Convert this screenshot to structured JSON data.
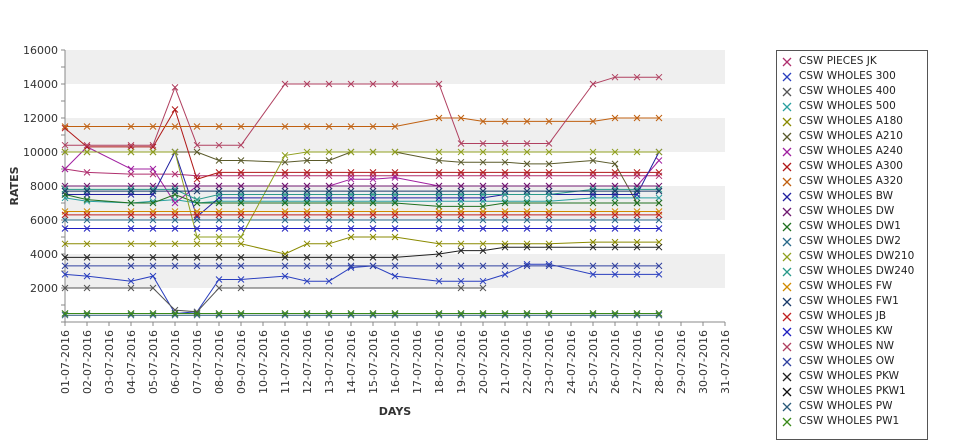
{
  "chart_data": {
    "type": "line",
    "title": "",
    "xlabel": "DAYS",
    "ylabel": "RATES",
    "ylim": [
      0,
      16000
    ],
    "yticks": [
      "2000",
      "4000",
      "6000",
      "8000",
      "10000",
      "12000",
      "14000",
      "16000"
    ],
    "grid": "alternating horizontal bands",
    "legend_position": "right",
    "categories": [
      "01-07-2016",
      "02-07-2016",
      "03-07-2016",
      "04-07-2016",
      "05-07-2016",
      "06-07-2016",
      "07-07-2016",
      "08-07-2016",
      "09-07-2016",
      "10-07-2016",
      "11-07-2016",
      "12-07-2016",
      "13-07-2016",
      "14-07-2016",
      "15-07-2016",
      "16-07-2016",
      "17-07-2016",
      "18-07-2016",
      "19-07-2016",
      "20-07-2016",
      "21-07-2016",
      "22-07-2016",
      "23-07-2016",
      "24-07-2016",
      "25-07-2016",
      "26-07-2016",
      "27-07-2016",
      "28-07-2016",
      "29-07-2016",
      "30-07-2016",
      "31-07-2016"
    ],
    "series": [
      {
        "name": "CSW PIECES JK",
        "color": "#b0306f",
        "marker": "x",
        "values": [
          9000,
          8800,
          null,
          8700,
          8700,
          8700,
          8600,
          8600,
          8600,
          null,
          8600,
          8600,
          8600,
          8600,
          8600,
          8600,
          null,
          8600,
          8600,
          8600,
          8600,
          8600,
          8600,
          null,
          8600,
          8600,
          8600,
          8600,
          null,
          null,
          null
        ]
      },
      {
        "name": "CSW WHOLES 300",
        "color": "#2a3fbf",
        "marker": "x",
        "values": [
          2800,
          2700,
          null,
          2400,
          2700,
          500,
          600,
          2500,
          2500,
          null,
          2700,
          2400,
          2400,
          3200,
          3300,
          2700,
          null,
          2400,
          2400,
          2400,
          2800,
          3400,
          3400,
          null,
          2800,
          2800,
          2800,
          2800,
          null,
          null,
          null
        ]
      },
      {
        "name": "CSW WHOLES 400",
        "color": "#555555",
        "marker": "x",
        "values": [
          2000,
          2000,
          null,
          2000,
          2000,
          700,
          600,
          2000,
          2000,
          null,
          null,
          null,
          null,
          null,
          null,
          null,
          null,
          null,
          2000,
          2000,
          null,
          null,
          null,
          null,
          null,
          null,
          null,
          null,
          null,
          null,
          null
        ]
      },
      {
        "name": "CSW WHOLES 500",
        "color": "#2aa0a0",
        "marker": "x",
        "values": [
          7300,
          7100,
          null,
          7000,
          7100,
          7200,
          7000,
          7100,
          7100,
          null,
          7100,
          7100,
          7100,
          7100,
          7100,
          7100,
          null,
          7100,
          7100,
          7100,
          7100,
          7100,
          7100,
          null,
          7300,
          7300,
          7300,
          7300,
          null,
          null,
          null
        ]
      },
      {
        "name": "CSW WHOLES A180",
        "color": "#8a8a00",
        "marker": "x",
        "values": [
          4600,
          4600,
          null,
          4600,
          4600,
          4600,
          4600,
          4600,
          4600,
          null,
          4000,
          4600,
          4600,
          5000,
          5000,
          5000,
          null,
          4600,
          4600,
          4600,
          4600,
          4600,
          4600,
          null,
          4700,
          4700,
          4700,
          4700,
          null,
          null,
          null
        ]
      },
      {
        "name": "CSW WHOLES A210",
        "color": "#5a5a2a",
        "marker": "x",
        "values": [
          10000,
          10000,
          null,
          10000,
          10000,
          10000,
          10000,
          9500,
          9500,
          null,
          9400,
          9500,
          9500,
          10000,
          10000,
          10000,
          null,
          9500,
          9400,
          9400,
          9400,
          9300,
          9300,
          null,
          9500,
          9300,
          7000,
          7000,
          null,
          null,
          null
        ]
      },
      {
        "name": "CSW WHOLES A240",
        "color": "#a020a0",
        "marker": "x",
        "values": [
          9000,
          10300,
          null,
          9000,
          9000,
          7000,
          8000,
          8000,
          8000,
          null,
          8000,
          8000,
          8000,
          8400,
          8400,
          8500,
          null,
          8000,
          8000,
          8000,
          8000,
          8000,
          8000,
          null,
          8000,
          8000,
          8000,
          9500,
          null,
          null,
          null
        ]
      },
      {
        "name": "CSW WHOLES A300",
        "color": "#b01818",
        "marker": "x",
        "values": [
          11400,
          10300,
          null,
          10300,
          10300,
          12500,
          8400,
          8800,
          8800,
          null,
          8800,
          8800,
          8800,
          8800,
          8800,
          8800,
          null,
          8800,
          8800,
          8800,
          8800,
          8800,
          8800,
          null,
          8800,
          8800,
          8800,
          8800,
          null,
          null,
          null
        ]
      },
      {
        "name": "CSW WHOLES A320",
        "color": "#c06010",
        "marker": "x",
        "values": [
          11500,
          11500,
          null,
          11500,
          11500,
          11500,
          11500,
          11500,
          11500,
          null,
          11500,
          11500,
          11500,
          11500,
          11500,
          11500,
          null,
          12000,
          12000,
          11800,
          11800,
          11800,
          11800,
          null,
          11800,
          12000,
          12000,
          12000,
          null,
          null,
          null
        ]
      },
      {
        "name": "CSW WHOLES BW",
        "color": "#2020a0",
        "marker": "x",
        "values": [
          7500,
          7500,
          null,
          7500,
          7500,
          10000,
          6200,
          7300,
          7300,
          null,
          7300,
          7300,
          7300,
          7300,
          7300,
          7300,
          null,
          7300,
          7300,
          7300,
          7500,
          7500,
          7500,
          null,
          7500,
          7500,
          7500,
          10000,
          null,
          null,
          null
        ]
      },
      {
        "name": "CSW WHOLES DW",
        "color": "#701a70",
        "marker": "x",
        "values": [
          8000,
          8000,
          null,
          8000,
          8000,
          8000,
          8000,
          8000,
          8000,
          null,
          8000,
          8000,
          8000,
          8000,
          8000,
          8000,
          null,
          8000,
          8000,
          8000,
          8000,
          8000,
          8000,
          null,
          8000,
          8000,
          8000,
          8000,
          null,
          null,
          null
        ]
      },
      {
        "name": "CSW WHOLES DW1",
        "color": "#207020",
        "marker": "x",
        "values": [
          7500,
          7200,
          null,
          7000,
          7000,
          7500,
          7000,
          7000,
          7000,
          null,
          7000,
          7000,
          7000,
          7000,
          7000,
          7000,
          null,
          6800,
          6800,
          6800,
          7000,
          7000,
          7000,
          null,
          7000,
          7000,
          7000,
          7000,
          null,
          null,
          null
        ]
      },
      {
        "name": "CSW WHOLES DW2",
        "color": "#2a6a8a",
        "marker": "x",
        "values": [
          6000,
          6000,
          null,
          6000,
          6000,
          6000,
          6000,
          6000,
          6000,
          null,
          6000,
          6000,
          6000,
          6000,
          6000,
          6000,
          null,
          6000,
          6000,
          6000,
          6000,
          6000,
          6000,
          null,
          6000,
          6000,
          6000,
          6000,
          null,
          null,
          null
        ]
      },
      {
        "name": "CSW WHOLES DW210",
        "color": "#90a020",
        "marker": "x",
        "values": [
          10000,
          10000,
          null,
          10000,
          10000,
          10000,
          5000,
          5000,
          5000,
          null,
          9800,
          10000,
          10000,
          10000,
          10000,
          10000,
          null,
          10000,
          10000,
          10000,
          10000,
          10000,
          10000,
          null,
          10000,
          10000,
          10000,
          10000,
          null,
          null,
          null
        ]
      },
      {
        "name": "CSW WHOLES DW240",
        "color": "#2a9a8a",
        "marker": "x",
        "values": [
          7800,
          7800,
          null,
          7800,
          7800,
          7800,
          7200,
          7500,
          7500,
          null,
          7500,
          7500,
          7500,
          7500,
          7500,
          7500,
          null,
          7500,
          7500,
          7500,
          7500,
          7500,
          7500,
          null,
          7800,
          7800,
          7800,
          7800,
          null,
          null,
          null
        ]
      },
      {
        "name": "CSW WHOLES FW",
        "color": "#d08a00",
        "marker": "x",
        "values": [
          6500,
          6500,
          null,
          6500,
          6500,
          6500,
          6500,
          6500,
          6500,
          null,
          6500,
          6500,
          6500,
          6500,
          6500,
          6500,
          null,
          6500,
          6500,
          6500,
          6500,
          6500,
          6500,
          null,
          6500,
          6500,
          6500,
          6500,
          null,
          null,
          null
        ]
      },
      {
        "name": "CSW WHOLES FW1",
        "color": "#1a3a6a",
        "marker": "x",
        "values": [
          7700,
          7700,
          null,
          7700,
          7700,
          7700,
          7700,
          7700,
          7700,
          null,
          7700,
          7700,
          7700,
          7700,
          7700,
          7700,
          null,
          7700,
          7700,
          7700,
          7700,
          7700,
          7700,
          null,
          7700,
          7700,
          7700,
          7700,
          null,
          null,
          null
        ]
      },
      {
        "name": "CSW WHOLES JB",
        "color": "#c02020",
        "marker": "x",
        "values": [
          6300,
          6300,
          null,
          6300,
          6300,
          6300,
          6300,
          6300,
          6300,
          null,
          6300,
          6300,
          6300,
          6300,
          6300,
          6300,
          null,
          6300,
          6300,
          6300,
          6300,
          6300,
          6300,
          null,
          6300,
          6300,
          6300,
          6300,
          null,
          null,
          null
        ]
      },
      {
        "name": "CSW WHOLES KW",
        "color": "#2020c0",
        "marker": "x",
        "values": [
          5500,
          5500,
          null,
          5500,
          5500,
          5500,
          5500,
          5500,
          5500,
          null,
          5500,
          5500,
          5500,
          5500,
          5500,
          5500,
          null,
          5500,
          5500,
          5500,
          5500,
          5500,
          5500,
          null,
          5500,
          5500,
          5500,
          5500,
          null,
          null,
          null
        ]
      },
      {
        "name": "CSW WHOLES NW",
        "color": "#b04060",
        "marker": "x",
        "values": [
          10400,
          10400,
          null,
          10400,
          10400,
          13800,
          10400,
          10400,
          10400,
          null,
          14000,
          14000,
          14000,
          14000,
          14000,
          14000,
          null,
          14000,
          10500,
          10500,
          10500,
          10500,
          10500,
          null,
          14000,
          14400,
          14400,
          14400,
          null,
          null,
          null
        ]
      },
      {
        "name": "CSW WHOLES OW",
        "color": "#3040a0",
        "marker": "x",
        "values": [
          3300,
          3300,
          null,
          3300,
          3300,
          3300,
          3300,
          3300,
          3300,
          null,
          3300,
          3300,
          3300,
          3300,
          3300,
          3300,
          null,
          3300,
          3300,
          3300,
          3300,
          3300,
          3300,
          null,
          3300,
          3300,
          3300,
          3300,
          null,
          null,
          null
        ]
      },
      {
        "name": "CSW WHOLES PKW",
        "color": "#202020",
        "marker": "x",
        "values": [
          3800,
          3800,
          null,
          3800,
          3800,
          3800,
          3800,
          3800,
          3800,
          null,
          3800,
          3800,
          3800,
          3800,
          3800,
          3800,
          null,
          4000,
          4200,
          4200,
          4400,
          4400,
          4400,
          null,
          4400,
          4400,
          4400,
          4400,
          null,
          null,
          null
        ]
      },
      {
        "name": "CSW WHOLES PKW1",
        "color": "#101010",
        "marker": "x",
        "values": [
          500,
          500,
          null,
          500,
          500,
          500,
          500,
          500,
          500,
          null,
          500,
          500,
          500,
          500,
          500,
          500,
          null,
          500,
          500,
          500,
          500,
          500,
          500,
          null,
          500,
          500,
          500,
          500,
          null,
          null,
          null
        ]
      },
      {
        "name": "CSW WHOLES PW",
        "color": "#2a5a7a",
        "marker": "x",
        "values": [
          400,
          400,
          null,
          400,
          400,
          400,
          400,
          400,
          400,
          null,
          400,
          400,
          400,
          400,
          400,
          400,
          null,
          400,
          400,
          400,
          400,
          400,
          400,
          null,
          400,
          400,
          400,
          400,
          null,
          null,
          null
        ]
      },
      {
        "name": "CSW WHOLES PW1",
        "color": "#3a8a1a",
        "marker": "x",
        "values": [
          500,
          500,
          null,
          500,
          500,
          500,
          500,
          500,
          500,
          null,
          500,
          500,
          500,
          500,
          500,
          500,
          null,
          500,
          500,
          500,
          500,
          500,
          500,
          null,
          500,
          500,
          500,
          500,
          null,
          null,
          null
        ]
      }
    ]
  }
}
